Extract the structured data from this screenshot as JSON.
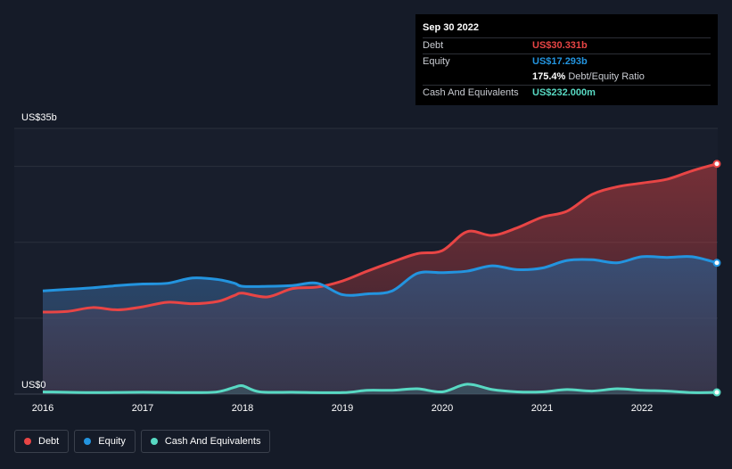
{
  "chart_data": {
    "type": "area",
    "title": "",
    "xlabel": "",
    "ylabel": "",
    "ylim": [
      0,
      35
    ],
    "y_unit": "billion US$",
    "y_tick_labels": {
      "top": "US$35b",
      "bottom": "US$0"
    },
    "x_ticks": [
      2016,
      2017,
      2018,
      2019,
      2020,
      2021,
      2022
    ],
    "x_range": [
      2016.0,
      2022.75
    ],
    "grid": true,
    "legend_placement": "bottom-left",
    "series": [
      {
        "name": "Debt",
        "color": "#e84545",
        "x": [
          2016.0,
          2016.25,
          2016.5,
          2016.75,
          2017.0,
          2017.25,
          2017.5,
          2017.75,
          2017.92,
          2018.0,
          2018.25,
          2018.5,
          2018.75,
          2019.0,
          2019.25,
          2019.5,
          2019.75,
          2020.0,
          2020.25,
          2020.5,
          2020.75,
          2021.0,
          2021.25,
          2021.5,
          2021.75,
          2022.0,
          2022.25,
          2022.5,
          2022.75
        ],
        "values": [
          10.8,
          10.9,
          11.4,
          11.1,
          11.5,
          12.1,
          11.9,
          12.2,
          13.0,
          13.3,
          12.8,
          13.9,
          14.1,
          14.9,
          16.2,
          17.4,
          18.5,
          18.9,
          21.4,
          20.9,
          21.9,
          23.3,
          24.1,
          26.3,
          27.3,
          27.8,
          28.3,
          29.4,
          30.331
        ]
      },
      {
        "name": "Equity",
        "color": "#2394df",
        "x": [
          2016.0,
          2016.25,
          2016.5,
          2016.75,
          2017.0,
          2017.25,
          2017.5,
          2017.75,
          2017.92,
          2018.0,
          2018.25,
          2018.5,
          2018.75,
          2019.0,
          2019.25,
          2019.5,
          2019.75,
          2020.0,
          2020.25,
          2020.5,
          2020.75,
          2021.0,
          2021.25,
          2021.5,
          2021.75,
          2022.0,
          2022.25,
          2022.5,
          2022.75
        ],
        "values": [
          13.6,
          13.8,
          14.0,
          14.3,
          14.5,
          14.6,
          15.3,
          15.1,
          14.6,
          14.2,
          14.2,
          14.3,
          14.6,
          13.1,
          13.2,
          13.6,
          15.9,
          16.0,
          16.2,
          16.9,
          16.4,
          16.6,
          17.6,
          17.7,
          17.3,
          18.1,
          18.0,
          18.1,
          17.293
        ]
      },
      {
        "name": "Cash And Equivalents",
        "color": "#58d9c3",
        "x": [
          2016.0,
          2016.5,
          2017.0,
          2017.5,
          2017.75,
          2017.92,
          2018.0,
          2018.17,
          2018.5,
          2019.0,
          2019.25,
          2019.5,
          2019.75,
          2020.0,
          2020.25,
          2020.5,
          2020.75,
          2021.0,
          2021.25,
          2021.5,
          2021.75,
          2022.0,
          2022.25,
          2022.5,
          2022.75
        ],
        "values": [
          0.3,
          0.2,
          0.25,
          0.2,
          0.3,
          0.9,
          1.1,
          0.3,
          0.25,
          0.2,
          0.5,
          0.5,
          0.7,
          0.3,
          1.3,
          0.6,
          0.3,
          0.3,
          0.6,
          0.4,
          0.7,
          0.5,
          0.4,
          0.2,
          0.232
        ]
      }
    ]
  },
  "tooltip": {
    "date": "Sep 30 2022",
    "rows": [
      {
        "label": "Debt",
        "value": "US$30.331b",
        "color": "#e84545"
      },
      {
        "label": "Equity",
        "value": "US$17.293b",
        "color": "#2394df"
      },
      {
        "label": "",
        "value": "175.4%",
        "extra": "Debt/Equity Ratio",
        "color": "#ffffff"
      },
      {
        "label": "Cash And Equivalents",
        "value": "US$232.000m",
        "color": "#58d9c3"
      }
    ]
  },
  "legend": [
    {
      "label": "Debt",
      "color": "#e84545"
    },
    {
      "label": "Equity",
      "color": "#2394df"
    },
    {
      "label": "Cash And Equivalents",
      "color": "#58d9c3"
    }
  ]
}
